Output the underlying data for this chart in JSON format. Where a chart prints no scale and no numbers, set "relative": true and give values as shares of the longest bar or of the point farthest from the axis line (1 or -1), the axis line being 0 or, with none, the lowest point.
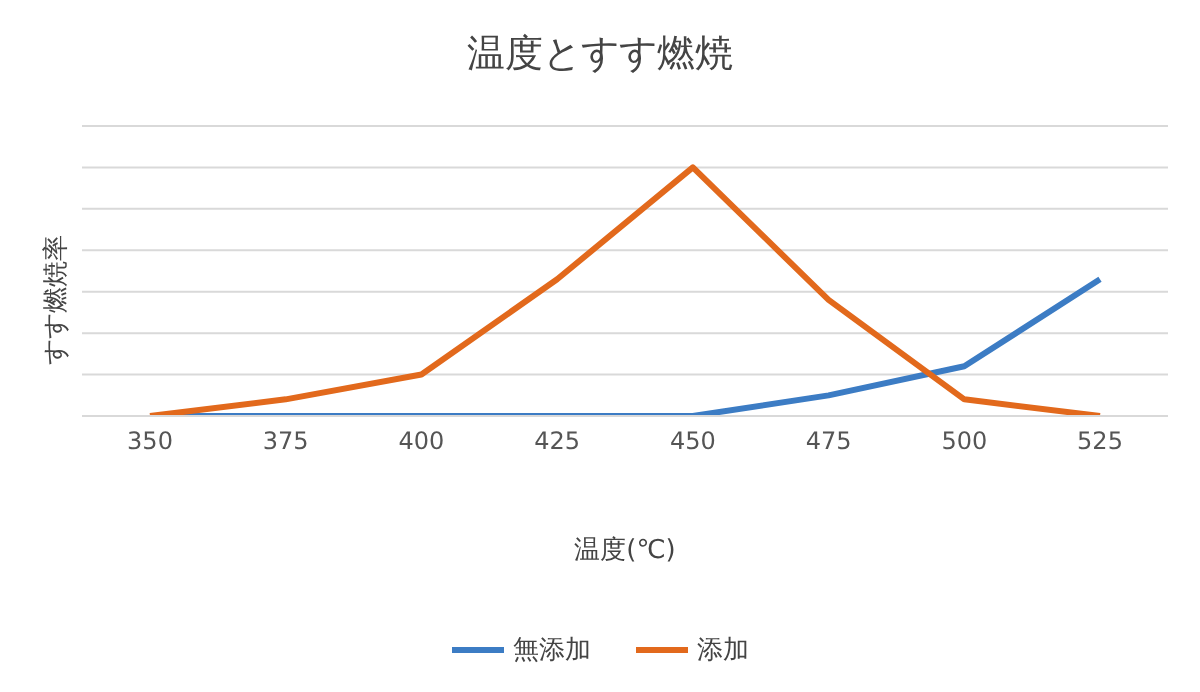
{
  "chart_data": {
    "type": "line",
    "title": "温度とすす燃焼",
    "xlabel": "温度(℃)",
    "ylabel": "すす燃焼率",
    "relative": true,
    "categories": [
      "350",
      "375",
      "400",
      "425",
      "450",
      "475",
      "500",
      "525"
    ],
    "series": [
      {
        "name": "無添加",
        "color": "#3c7cc4",
        "values": [
          0,
          0,
          0,
          0,
          0,
          0.083,
          0.2,
          0.55
        ]
      },
      {
        "name": "添加",
        "color": "#e2691c",
        "values": [
          0,
          0.067,
          0.167,
          0.55,
          1,
          0.467,
          0.067,
          0
        ]
      }
    ],
    "grid": "y",
    "legend": "bottom",
    "marker": "none",
    "line_style": "solid"
  }
}
